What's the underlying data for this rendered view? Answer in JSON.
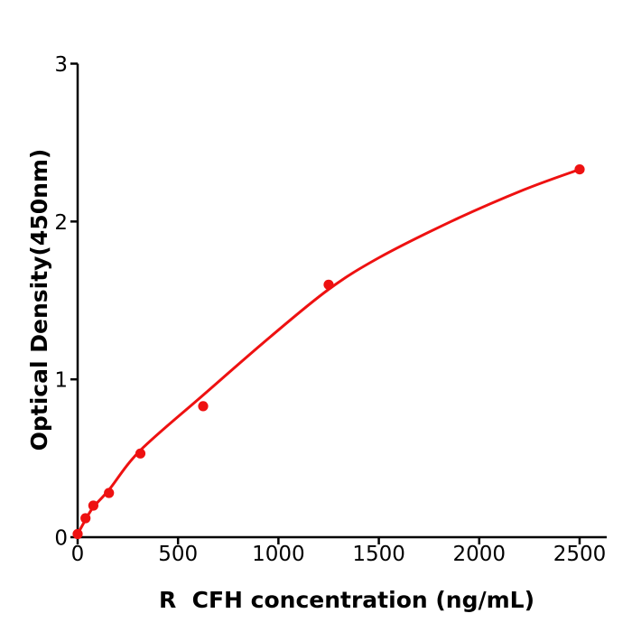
{
  "figure": {
    "background_color": "#ffffff",
    "text_color": "#000000",
    "accent_color": "#ee1111"
  },
  "chart_data": {
    "type": "scatter",
    "title": "",
    "xlabel": "R  CFH concentration (ng/mL)",
    "ylabel": "Optical Density(450nm)",
    "x": [
      0,
      39.06,
      78.13,
      156.25,
      312.5,
      625,
      1250,
      2500
    ],
    "y": [
      0.02,
      0.12,
      0.2,
      0.28,
      0.53,
      0.83,
      1.6,
      2.33
    ],
    "fit_curve": {
      "x": [
        0,
        39,
        78,
        156,
        312,
        625,
        960,
        1250,
        1500,
        1860,
        2220,
        2500
      ],
      "y": [
        0.02,
        0.11,
        0.19,
        0.3,
        0.55,
        0.9,
        1.27,
        1.57,
        1.77,
        2.0,
        2.2,
        2.33
      ]
    },
    "xlim": [
      0,
      2635
    ],
    "ylim": [
      0,
      3
    ],
    "xticks": [
      0,
      500,
      1000,
      1500,
      2000,
      2500
    ],
    "yticks": [
      0,
      1,
      2,
      3
    ],
    "grid": false,
    "legend": null,
    "marker_color": "#ee1111",
    "line_color": "#ee1111",
    "axis_color": "#000000"
  }
}
